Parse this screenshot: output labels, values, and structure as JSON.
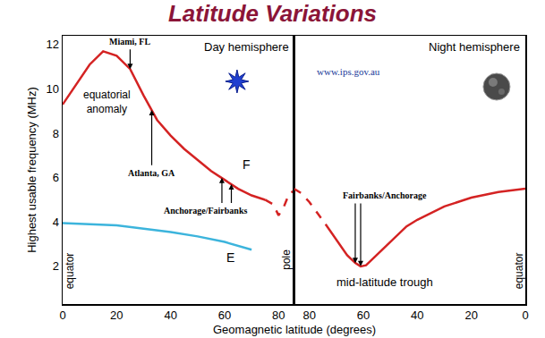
{
  "title": "Latitude Variations",
  "x_label": "Geomagnetic latitude (degrees)",
  "chart_data": [
    {
      "type": "line",
      "title": "Day hemisphere",
      "y_label": "Highest usable frequency (MHz)",
      "xlim": [
        0,
        85.7
      ],
      "xticks": [
        0,
        20,
        40,
        60,
        80
      ],
      "ylim": [
        0.3,
        12.4
      ],
      "yticks": [
        2,
        4,
        6,
        8,
        10,
        12
      ],
      "grid": false,
      "series": [
        {
          "color": "#d42323",
          "line_style": "solid",
          "x": [
            0,
            5,
            10,
            15,
            20,
            25,
            30,
            35,
            40,
            45,
            50,
            55,
            60,
            65,
            70,
            75
          ],
          "values": [
            9.3,
            10.2,
            11.1,
            11.7,
            11.5,
            10.9,
            9.7,
            8.6,
            7.9,
            7.3,
            6.8,
            6.3,
            5.9,
            5.5,
            5.2,
            5.0
          ]
        },
        {
          "color": "#d42323",
          "line_style": "dashed",
          "x": [
            75,
            78,
            80,
            82,
            84,
            85.7
          ],
          "values": [
            5.0,
            4.8,
            4.3,
            4.7,
            5.3,
            5.4
          ]
        },
        {
          "color": "#3cb4dc",
          "line_style": "solid",
          "x": [
            0,
            10,
            20,
            30,
            40,
            50,
            60,
            70
          ],
          "values": [
            3.95,
            3.9,
            3.85,
            3.7,
            3.55,
            3.35,
            3.1,
            2.75
          ]
        }
      ],
      "annotations": [
        {
          "text": "Miami, FL",
          "x": 25,
          "y": 11.85,
          "arrow_to": [
            [
              25,
              10.9
            ]
          ]
        },
        {
          "text": "equatorial\nanomaly",
          "x": 16.5,
          "y": 9.4
        },
        {
          "text": "Atlanta, GA",
          "x": 33,
          "y": 6.5,
          "arrow_to": [
            [
              33,
              9.05
            ]
          ]
        },
        {
          "text": "Anchorage/Fairbanks",
          "x": 53,
          "y": 4.8,
          "arrow_to": [
            [
              59,
              6.0
            ],
            [
              62.5,
              5.7
            ]
          ]
        },
        {
          "text": "F",
          "x": 68,
          "y": 6.6
        },
        {
          "text": "E",
          "x": 62,
          "y": 2.4
        },
        {
          "text": "equator",
          "x": 2.5,
          "y": 1.8
        },
        {
          "text": "pole",
          "x": 83,
          "y": 2.3
        }
      ]
    },
    {
      "type": "line",
      "title": "Night hemisphere",
      "xlim": [
        85.7,
        0
      ],
      "xticks": [
        80,
        60,
        40,
        20,
        0
      ],
      "grid": false,
      "series": [
        {
          "color": "#d42323",
          "line_style": "dashed",
          "x": [
            85.7,
            83,
            80,
            77,
            74
          ],
          "values": [
            5.5,
            5.3,
            4.9,
            4.4,
            3.9
          ]
        },
        {
          "color": "#d42323",
          "line_style": "solid",
          "x": [
            74,
            70,
            66,
            63,
            61,
            59,
            56,
            52,
            48,
            44,
            40,
            30,
            20,
            10,
            0
          ],
          "values": [
            3.9,
            3.2,
            2.5,
            2.15,
            2.0,
            2.05,
            2.4,
            2.9,
            3.35,
            3.8,
            4.1,
            4.7,
            5.1,
            5.35,
            5.5
          ]
        }
      ],
      "annotations": [
        {
          "text": "www.ips.gov.au",
          "x": 78,
          "y": 10.8
        },
        {
          "text": "Fairbanks/Anchorage",
          "x": 52,
          "y": 4.9,
          "arrow_to": [
            [
              63,
              2.15
            ],
            [
              61,
              2.0
            ]
          ]
        },
        {
          "text": "mid-latitude trough",
          "x": 52,
          "y": 1.3
        },
        {
          "text": "equator",
          "x": 2.5,
          "y": 1.8
        }
      ]
    }
  ]
}
